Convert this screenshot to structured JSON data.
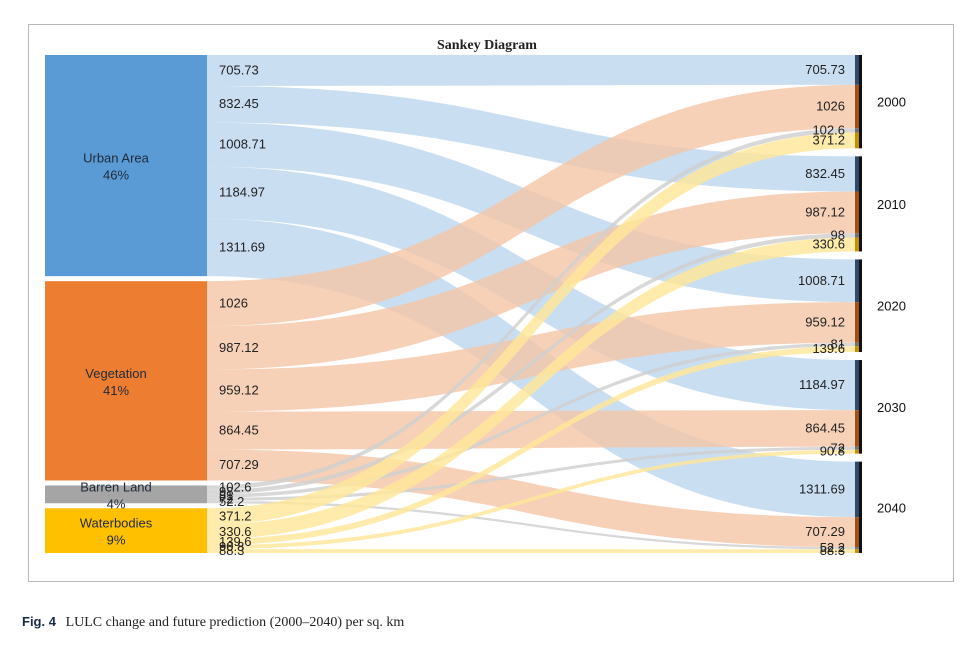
{
  "diagram": {
    "title": "Sankey Diagram",
    "colors": {
      "urban": "#5b9bd5",
      "vegetation": "#ed7d31",
      "barren": "#a5a5a5",
      "water": "#ffc000",
      "urban_flow": "#bdd7ee",
      "vegetation_flow": "#f4c7a8",
      "barren_flow": "#d0d0d0",
      "water_flow": "#ffe699"
    },
    "sources": [
      {
        "name": "Urban Area",
        "share": "46%",
        "color": "urban"
      },
      {
        "name": "Vegetation",
        "share": "41%",
        "color": "vegetation"
      },
      {
        "name": "Barren Land",
        "share": "4%",
        "color": "barren"
      },
      {
        "name": "Waterbodies",
        "share": "9%",
        "color": "water"
      }
    ],
    "years": [
      "2000",
      "2010",
      "2020",
      "2030",
      "2040"
    ],
    "flows": [
      {
        "source": "Urban Area",
        "year": "2000",
        "value": 705.73
      },
      {
        "source": "Urban Area",
        "year": "2010",
        "value": 832.45
      },
      {
        "source": "Urban Area",
        "year": "2020",
        "value": 1008.71
      },
      {
        "source": "Urban Area",
        "year": "2030",
        "value": 1184.97
      },
      {
        "source": "Urban Area",
        "year": "2040",
        "value": 1311.69
      },
      {
        "source": "Vegetation",
        "year": "2000",
        "value": 1026
      },
      {
        "source": "Vegetation",
        "year": "2010",
        "value": 987.12
      },
      {
        "source": "Vegetation",
        "year": "2020",
        "value": 959.12
      },
      {
        "source": "Vegetation",
        "year": "2030",
        "value": 864.45
      },
      {
        "source": "Vegetation",
        "year": "2040",
        "value": 707.29
      },
      {
        "source": "Barren Land",
        "year": "2000",
        "value": 102.6
      },
      {
        "source": "Barren Land",
        "year": "2010",
        "value": 98
      },
      {
        "source": "Barren Land",
        "year": "2020",
        "value": 81
      },
      {
        "source": "Barren Land",
        "year": "2030",
        "value": 72
      },
      {
        "source": "Barren Land",
        "year": "2040",
        "value": 52.2
      },
      {
        "source": "Waterbodies",
        "year": "2000",
        "value": 371.2
      },
      {
        "source": "Waterbodies",
        "year": "2010",
        "value": 330.6
      },
      {
        "source": "Waterbodies",
        "year": "2020",
        "value": 139.6
      },
      {
        "source": "Waterbodies",
        "year": "2030",
        "value": 90.8
      },
      {
        "source": "Waterbodies",
        "year": "2040",
        "value": 88.3
      }
    ]
  },
  "caption": {
    "label": "Fig. 4",
    "text": "LULC change and future prediction (2000–2040) per sq. km"
  }
}
